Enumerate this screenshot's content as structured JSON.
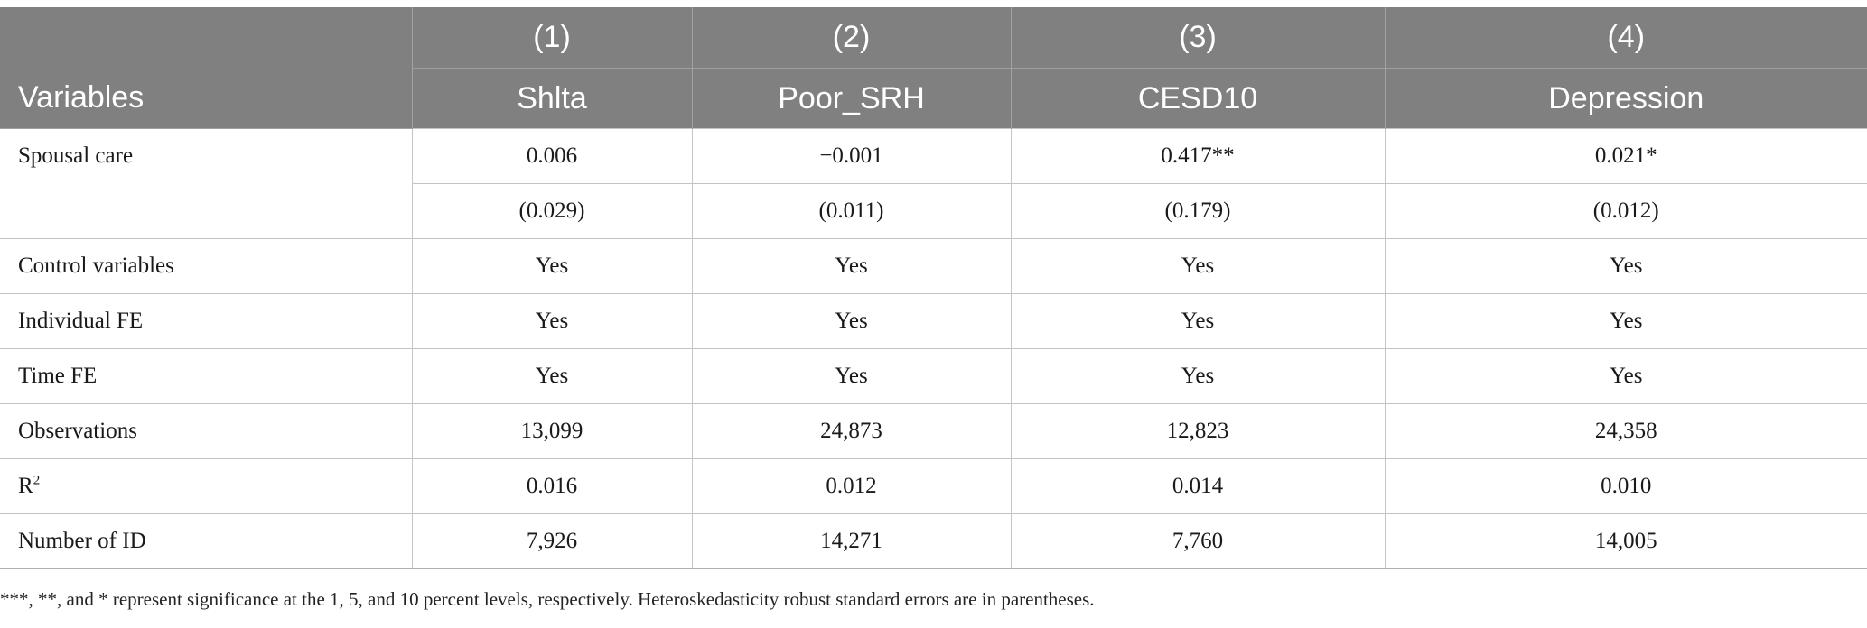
{
  "table": {
    "header_row1": [
      "",
      "(1)",
      "(2)",
      "(3)",
      "(4)"
    ],
    "header_row2": [
      "Variables",
      "Shlta",
      "Poor_SRH",
      "CESD10",
      "Depression"
    ],
    "spousal_care": {
      "label": "Spousal care",
      "coefficients": [
        "0.006",
        "−0.001",
        "0.417**",
        "0.021*"
      ],
      "std_errors": [
        "(0.029)",
        "(0.011)",
        "(0.179)",
        "(0.012)"
      ]
    },
    "rows": [
      {
        "label": "Control variables",
        "values": [
          "Yes",
          "Yes",
          "Yes",
          "Yes"
        ]
      },
      {
        "label": "Individual FE",
        "values": [
          "Yes",
          "Yes",
          "Yes",
          "Yes"
        ]
      },
      {
        "label": "Time FE",
        "values": [
          "Yes",
          "Yes",
          "Yes",
          "Yes"
        ]
      },
      {
        "label": "Observations",
        "values": [
          "13,099",
          "24,873",
          "12,823",
          "24,358"
        ]
      }
    ],
    "r2_row": {
      "label_base": "R",
      "label_sup": "2",
      "values": [
        "0.016",
        "0.012",
        "0.014",
        "0.010"
      ]
    },
    "number_row": {
      "label": "Number of ID",
      "values": [
        "7,926",
        "14,271",
        "7,760",
        "14,005"
      ]
    }
  },
  "footnote": "***, **, and * represent significance at the 1, 5, and 10 percent levels, respectively. Heteroskedasticity robust standard errors are in parentheses.",
  "colors": {
    "header_bg": "#808080",
    "header_text": "#ffffff",
    "grid": "#c4c4c4"
  }
}
